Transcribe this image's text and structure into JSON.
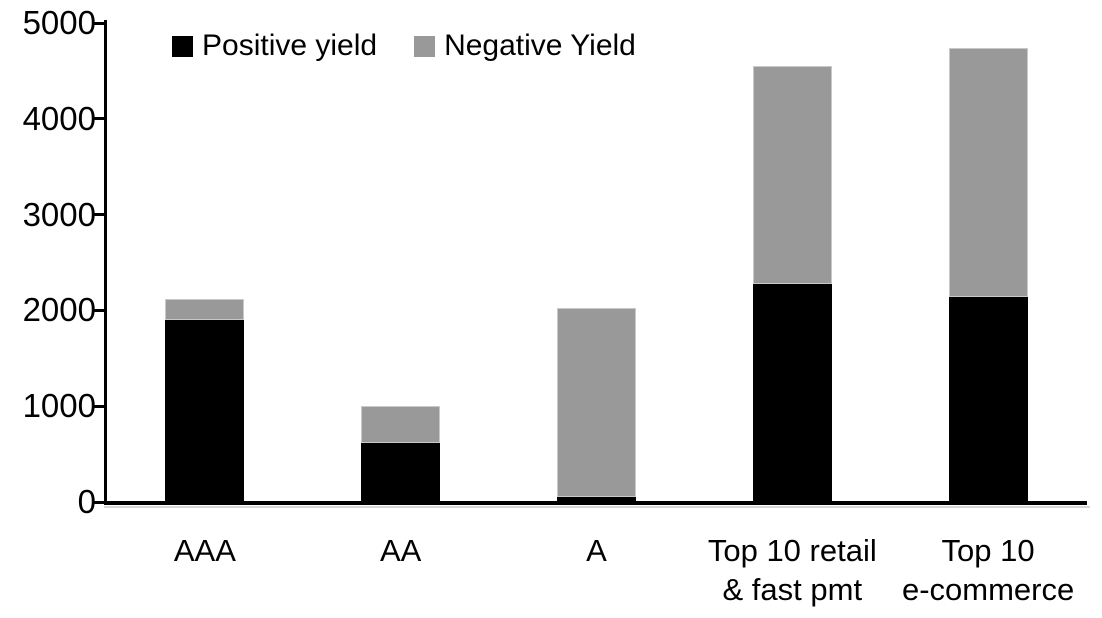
{
  "chart_data": {
    "type": "bar",
    "stacked": true,
    "title": "",
    "xlabel": "",
    "ylabel": "",
    "categories": [
      "AAA",
      "AA",
      "A",
      "Top 10 retail & fast pmt",
      "Top 10 e-commerce"
    ],
    "category_label_lines": [
      [
        "AAA"
      ],
      [
        "AA"
      ],
      [
        "A"
      ],
      [
        "Top 10 retail",
        "& fast pmt"
      ],
      [
        "Top 10",
        "e-commerce"
      ]
    ],
    "series": [
      {
        "name": "Positive yield",
        "color": "#000000",
        "values": [
          1900,
          620,
          50,
          2280,
          2140
        ]
      },
      {
        "name": "Negative Yield",
        "color": "#999999",
        "values": [
          220,
          380,
          1980,
          2270,
          2600
        ]
      }
    ],
    "totals": [
      2120,
      1000,
      2030,
      4550,
      4740
    ],
    "ylim": [
      0,
      5000
    ],
    "yticks": [
      0,
      1000,
      2000,
      3000,
      4000,
      5000
    ],
    "grid": false,
    "legend_position": "top-left"
  },
  "legend": {
    "items": [
      {
        "label": "Positive yield",
        "color": "#000000"
      },
      {
        "label": "Negative Yield",
        "color": "#999999"
      }
    ]
  },
  "colors": {
    "positive": "#000000",
    "negative": "#999999",
    "axis": "#000000",
    "background": "#ffffff",
    "bar_outline": "#c9c9c9"
  }
}
